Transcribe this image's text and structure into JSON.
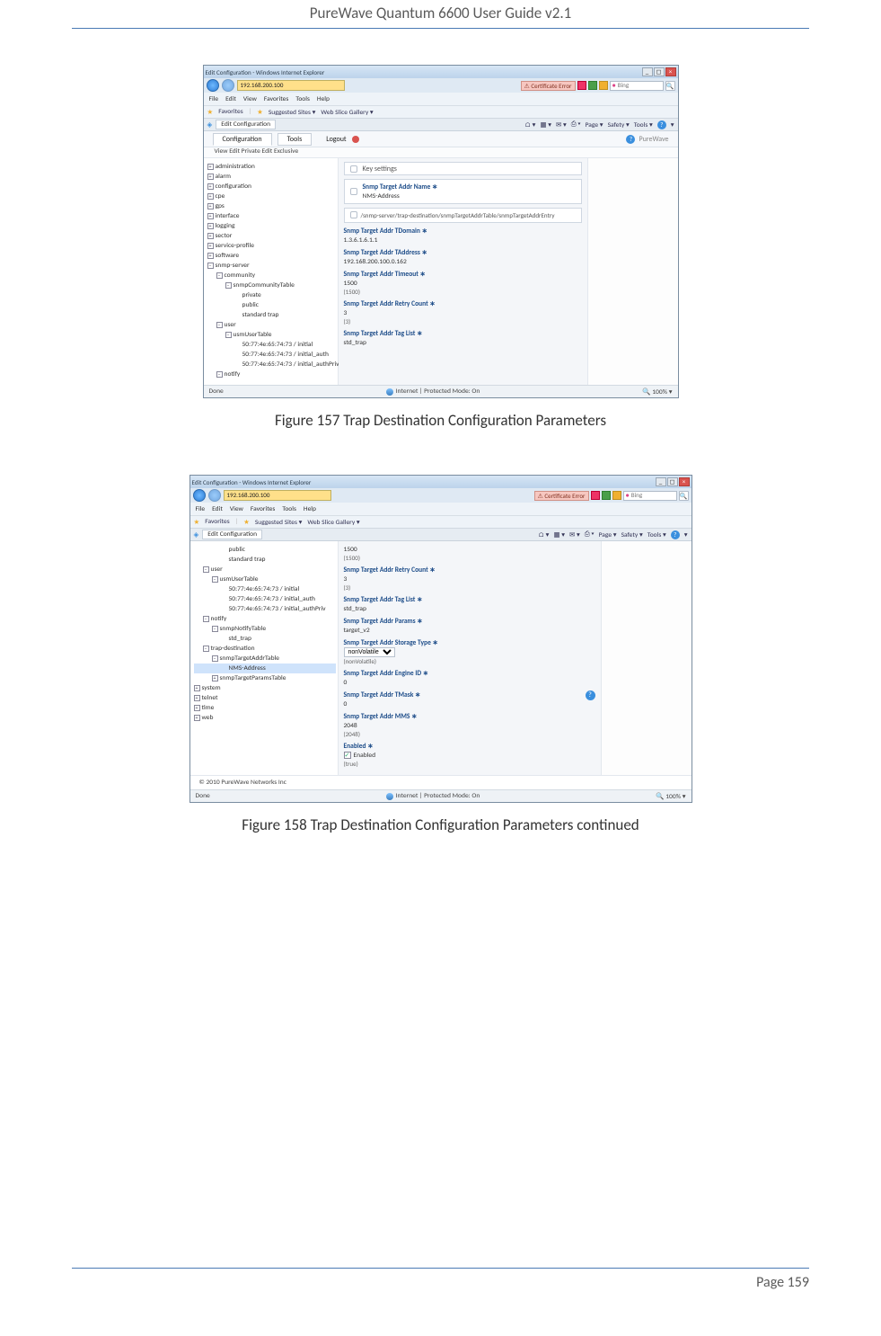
{
  "document": {
    "header": "PureWave Quantum 6600 User Guide v2.1",
    "caption1": "Figure 157 Trap Destination Configuration Parameters",
    "caption2": "Figure 158 Trap Destination Configuration Parameters continued",
    "footer": "Page 159"
  },
  "shot1": {
    "title": "Edit Configuration - Windows Internet Explorer",
    "url": "192.168.200.100",
    "cert": "Certificate Error",
    "search": "Bing",
    "menus": [
      "File",
      "Edit",
      "View",
      "Favorites",
      "Tools",
      "Help"
    ],
    "fav_label": "Favorites",
    "fav_suggested": "Suggested Sites ▾",
    "fav_gallery": "Web Slice Gallery ▾",
    "tab": "Edit Configuration",
    "toolbar_items": [
      "Page ▾",
      "Safety ▾",
      "Tools ▾"
    ],
    "app_tabs": [
      "Configuration",
      "Tools"
    ],
    "logout": "Logout",
    "brand": "PureWave",
    "subbar": "View   Edit Private   Edit Exclusive",
    "tree": [
      {
        "t": "administration",
        "b": "+",
        "i": 0
      },
      {
        "t": "alarm",
        "b": "+",
        "i": 0
      },
      {
        "t": "configuration",
        "b": "+",
        "i": 0
      },
      {
        "t": "cpe",
        "b": "+",
        "i": 0
      },
      {
        "t": "gps",
        "b": "+",
        "i": 0
      },
      {
        "t": "interface",
        "b": "+",
        "i": 0
      },
      {
        "t": "logging",
        "b": "+",
        "i": 0
      },
      {
        "t": "sector",
        "b": "+",
        "i": 0
      },
      {
        "t": "service-profile",
        "b": "+",
        "i": 0
      },
      {
        "t": "software",
        "b": "+",
        "i": 0
      },
      {
        "t": "snmp-server",
        "b": "−",
        "i": 0
      },
      {
        "t": "community",
        "b": "−",
        "i": 1
      },
      {
        "t": "snmpCommunityTable",
        "b": "−",
        "i": 2
      },
      {
        "t": "private",
        "b": "",
        "i": 3
      },
      {
        "t": "public",
        "b": "",
        "i": 3
      },
      {
        "t": "standard trap",
        "b": "",
        "i": 3
      },
      {
        "t": "user",
        "b": "−",
        "i": 1
      },
      {
        "t": "usmUserTable",
        "b": "−",
        "i": 2
      },
      {
        "t": "50:77:4e:65:74:73 / initial",
        "b": "",
        "i": 3
      },
      {
        "t": "50:77:4e:65:74:73 / initial_auth",
        "b": "",
        "i": 3
      },
      {
        "t": "50:77:4e:65:74:73 / initial_authPriv",
        "b": "",
        "i": 3
      },
      {
        "t": "notify",
        "b": "−",
        "i": 1
      }
    ],
    "key_settings": "Key settings",
    "f_name_lbl": "Snmp Target Addr Name ∗",
    "f_name_val": "NMS-Address",
    "path": "/snmp-server/trap-destination/snmpTargetAddrTable/snmpTargetAddrEntry",
    "f_domain_lbl": "Snmp Target Addr TDomain ∗",
    "f_domain_val": "1.3.6.1.6.1.1",
    "f_taddr_lbl": "Snmp Target Addr TAddress ∗",
    "f_taddr_val": "192.168.200.100.0.162",
    "f_timeout_lbl": "Snmp Target Addr Timeout ∗",
    "f_timeout_val": "1500",
    "f_timeout_paren": "(1500)",
    "f_retry_lbl": "Snmp Target Addr Retry Count ∗",
    "f_retry_val": "3",
    "f_retry_paren": "(3)",
    "f_taglist_lbl": "Snmp Target Addr Tag List ∗",
    "f_taglist_val": "std_trap",
    "status_done": "Done",
    "status_zone": "Internet | Protected Mode: On",
    "status_zoom": "100%"
  },
  "shot2": {
    "title": "Edit Configuration - Windows Internet Explorer",
    "url": "192.168.200.100",
    "cert": "Certificate Error",
    "search": "Bing",
    "menus": [
      "File",
      "Edit",
      "View",
      "Favorites",
      "Tools",
      "Help"
    ],
    "fav_label": "Favorites",
    "fav_suggested": "Suggested Sites ▾",
    "fav_gallery": "Web Slice Gallery ▾",
    "tab": "Edit Configuration",
    "toolbar_items": [
      "Page ▾",
      "Safety ▾",
      "Tools ▾"
    ],
    "tree": [
      {
        "t": "public",
        "b": "",
        "i": 3
      },
      {
        "t": "standard trap",
        "b": "",
        "i": 3
      },
      {
        "t": "user",
        "b": "−",
        "i": 1
      },
      {
        "t": "usmUserTable",
        "b": "−",
        "i": 2
      },
      {
        "t": "50:77:4e:65:74:73 / initial",
        "b": "",
        "i": 3
      },
      {
        "t": "50:77:4e:65:74:73 / initial_auth",
        "b": "",
        "i": 3
      },
      {
        "t": "50:77:4e:65:74:73 / initial_authPriv",
        "b": "",
        "i": 3
      },
      {
        "t": "notify",
        "b": "−",
        "i": 1
      },
      {
        "t": "snmpNotifyTable",
        "b": "−",
        "i": 2
      },
      {
        "t": "std_trap",
        "b": "",
        "i": 3
      },
      {
        "t": "trap-destination",
        "b": "−",
        "i": 1
      },
      {
        "t": "snmpTargetAddrTable",
        "b": "−",
        "i": 2
      },
      {
        "t": "NMS-Address",
        "b": "",
        "i": 3,
        "sel": true
      },
      {
        "t": "snmpTargetParamsTable",
        "b": "+",
        "i": 2
      },
      {
        "t": "system",
        "b": "+",
        "i": 0
      },
      {
        "t": "telnet",
        "b": "+",
        "i": 0
      },
      {
        "t": "time",
        "b": "+",
        "i": 0
      },
      {
        "t": "web",
        "b": "+",
        "i": 0
      }
    ],
    "f_timeout_val": "1500",
    "f_timeout_paren": "(1500)",
    "f_retry_lbl": "Snmp Target Addr Retry Count ∗",
    "f_retry_val": "3",
    "f_retry_paren": "(3)",
    "f_taglist_lbl": "Snmp Target Addr Tag List ∗",
    "f_taglist_val": "std_trap",
    "f_params_lbl": "Snmp Target Addr Params ∗",
    "f_params_val": "target_v2",
    "f_storage_lbl": "Snmp Target Addr Storage Type ∗",
    "f_storage_sel": "nonVolatile",
    "f_storage_paren": "(nonVolatile)",
    "f_engine_lbl": "Snmp Target Addr Engine ID ∗",
    "f_engine_val": "0",
    "f_tmask_lbl": "Snmp Target Addr TMask ∗",
    "f_tmask_val": "0",
    "f_mms_lbl": "Snmp Target Addr MMS ∗",
    "f_mms_val": "2048",
    "f_mms_paren": "(2048)",
    "f_enabled_lbl": "Enabled ∗",
    "f_enabled_chk": "Enabled",
    "f_enabled_paren": "(true)",
    "copyright": "© 2010 PureWave Networks Inc",
    "status_done": "Done",
    "status_zone": "Internet | Protected Mode: On",
    "status_zoom": "100%"
  }
}
